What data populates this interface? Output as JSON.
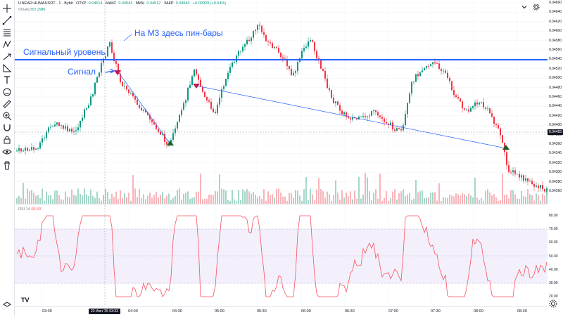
{
  "legend": {
    "symbol": "LINEAR:HUMAUSDT · 1 · Bybit",
    "open_label": "ОТКР",
    "open": "0.04514",
    "high_label": "МАКС",
    "high": "0.04543",
    "low_label": "МИН",
    "low": "0.04512",
    "close_label": "ЗАКР",
    "close": "0.04543",
    "change": "+0.00029 (+0.64%)"
  },
  "volume": {
    "label": "Объём",
    "value": "557.298K"
  },
  "rsi": {
    "label": "RSI 14",
    "value": "69.43"
  },
  "annotations": {
    "pinbars": "На М3 здесь пин-бары",
    "level": "Сигнальный уровень",
    "signal": "Сигнал"
  },
  "price_axis": {
    "labels": [
      "0.04660",
      "0.04640",
      "0.04620",
      "0.04600",
      "0.04580",
      "0.04560",
      "0.04540",
      "0.04520",
      "0.04500",
      "0.04480",
      "0.04460",
      "0.04440",
      "0.04420",
      "0.04400",
      "0.04380",
      "0.04360",
      "0.04340",
      "0.04320",
      "0.04300",
      "0.04280",
      "0.04260"
    ],
    "current": "0.04483"
  },
  "rsi_axis": {
    "labels": [
      "80.00",
      "70.00",
      "60.00",
      "50.00",
      "40.00",
      "30.00",
      "20.00"
    ]
  },
  "time_axis": {
    "labels": [
      "03:00",
      "04:00",
      "04:30",
      "05:00",
      "05:30",
      "06:00",
      "06:30",
      "07:00",
      "07:30",
      "08:00",
      "08:30"
    ],
    "cursor": "23 Июн '25   03:33"
  },
  "colors": {
    "up": "#089981",
    "down": "#f23645",
    "annotation": "#2962ff",
    "rsi": "#f7525f"
  },
  "icons": [
    "crosshair-icon",
    "trend-line-icon",
    "fib-icon",
    "pattern-icon",
    "brush-icon",
    "text-icon",
    "emoji-icon",
    "measure-icon",
    "zoom-icon",
    "magnet-icon",
    "lock-icon",
    "eye-icon",
    "trash-icon"
  ]
}
